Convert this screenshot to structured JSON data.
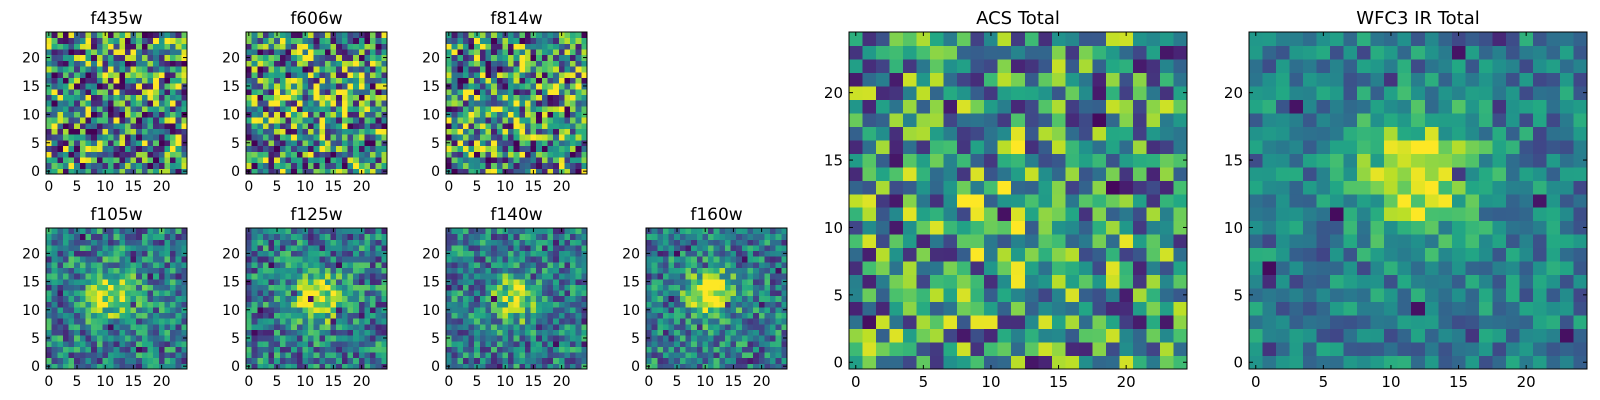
{
  "figure": {
    "colormap": "viridis",
    "colors": {
      "background": "#ffffff",
      "frame": "#000000"
    }
  },
  "chart_data": [
    {
      "type": "heatmap",
      "title": "f435w",
      "grid": [
        25,
        25
      ],
      "xlim": [
        -0.5,
        24.5
      ],
      "ylim": [
        -0.5,
        24.5
      ],
      "x_ticks": [
        0,
        5,
        10,
        15,
        20
      ],
      "y_ticks": [
        0,
        5,
        10,
        15,
        20
      ],
      "x_tick_labels": [
        "0",
        "5",
        "10",
        "15",
        "20"
      ],
      "y_tick_labels": [
        "0",
        "5",
        "10",
        "15",
        "20"
      ],
      "pattern": "noise",
      "signal": 0.0,
      "noise": 0.55,
      "seed": 11
    },
    {
      "type": "heatmap",
      "title": "f606w",
      "grid": [
        25,
        25
      ],
      "xlim": [
        -0.5,
        24.5
      ],
      "ylim": [
        -0.5,
        24.5
      ],
      "x_ticks": [
        0,
        5,
        10,
        15,
        20
      ],
      "y_ticks": [
        0,
        5,
        10,
        15,
        20
      ],
      "x_tick_labels": [
        "0",
        "5",
        "10",
        "15",
        "20"
      ],
      "y_tick_labels": [
        "0",
        "5",
        "10",
        "15",
        "20"
      ],
      "pattern": "noise",
      "signal": 0.15,
      "noise": 0.55,
      "seed": 23
    },
    {
      "type": "heatmap",
      "title": "f814w",
      "grid": [
        25,
        25
      ],
      "xlim": [
        -0.5,
        24.5
      ],
      "ylim": [
        -0.5,
        24.5
      ],
      "x_ticks": [
        0,
        5,
        10,
        15,
        20
      ],
      "y_ticks": [
        0,
        5,
        10,
        15,
        20
      ],
      "x_tick_labels": [
        "0",
        "5",
        "10",
        "15",
        "20"
      ],
      "y_tick_labels": [
        "0",
        "5",
        "10",
        "15",
        "20"
      ],
      "pattern": "noise",
      "signal": 0.1,
      "noise": 0.55,
      "seed": 37
    },
    {
      "type": "heatmap",
      "title": "f105w",
      "grid": [
        25,
        25
      ],
      "xlim": [
        -0.5,
        24.5
      ],
      "ylim": [
        -0.5,
        24.5
      ],
      "x_ticks": [
        0,
        5,
        10,
        15,
        20
      ],
      "y_ticks": [
        0,
        5,
        10,
        15,
        20
      ],
      "x_tick_labels": [
        "0",
        "5",
        "10",
        "15",
        "20"
      ],
      "y_tick_labels": [
        "0",
        "5",
        "10",
        "15",
        "20"
      ],
      "pattern": "centered-source",
      "center": [
        11,
        13
      ],
      "signal": 0.55,
      "noise": 0.32,
      "seed": 41
    },
    {
      "type": "heatmap",
      "title": "f125w",
      "grid": [
        25,
        25
      ],
      "xlim": [
        -0.5,
        24.5
      ],
      "ylim": [
        -0.5,
        24.5
      ],
      "x_ticks": [
        0,
        5,
        10,
        15,
        20
      ],
      "y_ticks": [
        0,
        5,
        10,
        15,
        20
      ],
      "x_tick_labels": [
        "0",
        "5",
        "10",
        "15",
        "20"
      ],
      "y_tick_labels": [
        "0",
        "5",
        "10",
        "15",
        "20"
      ],
      "pattern": "centered-source",
      "center": [
        12,
        12
      ],
      "signal": 0.6,
      "noise": 0.32,
      "seed": 53
    },
    {
      "type": "heatmap",
      "title": "f140w",
      "grid": [
        25,
        25
      ],
      "xlim": [
        -0.5,
        24.5
      ],
      "ylim": [
        -0.5,
        24.5
      ],
      "x_ticks": [
        0,
        5,
        10,
        15,
        20
      ],
      "y_ticks": [
        0,
        5,
        10,
        15,
        20
      ],
      "x_tick_labels": [
        "0",
        "5",
        "10",
        "15",
        "20"
      ],
      "y_tick_labels": [
        "0",
        "5",
        "10",
        "15",
        "20"
      ],
      "pattern": "centered-source",
      "center": [
        12,
        12
      ],
      "signal": 0.45,
      "noise": 0.3,
      "seed": 67
    },
    {
      "type": "heatmap",
      "title": "f160w",
      "grid": [
        25,
        25
      ],
      "xlim": [
        -0.5,
        24.5
      ],
      "ylim": [
        -0.5,
        24.5
      ],
      "x_ticks": [
        0,
        5,
        10,
        15,
        20
      ],
      "y_ticks": [
        0,
        5,
        10,
        15,
        20
      ],
      "x_tick_labels": [
        "0",
        "5",
        "10",
        "15",
        "20"
      ],
      "y_tick_labels": [
        "0",
        "5",
        "10",
        "15",
        "20"
      ],
      "pattern": "centered-source",
      "center": [
        11,
        13
      ],
      "signal": 0.6,
      "noise": 0.3,
      "seed": 79
    },
    {
      "type": "heatmap",
      "title": "ACS Total",
      "grid": [
        25,
        25
      ],
      "xlim": [
        -0.5,
        24.5
      ],
      "ylim": [
        -0.5,
        24.5
      ],
      "x_ticks": [
        0,
        5,
        10,
        15,
        20
      ],
      "y_ticks": [
        0,
        5,
        10,
        15,
        20
      ],
      "x_tick_labels": [
        "0",
        "5",
        "10",
        "15",
        "20"
      ],
      "y_tick_labels": [
        "0",
        "5",
        "10",
        "15",
        "20"
      ],
      "pattern": "noise",
      "center": [
        12,
        11
      ],
      "signal": 0.2,
      "noise": 0.45,
      "seed": 97
    },
    {
      "type": "heatmap",
      "title": "WFC3 IR Total",
      "grid": [
        25,
        25
      ],
      "xlim": [
        -0.5,
        24.5
      ],
      "ylim": [
        -0.5,
        24.5
      ],
      "x_ticks": [
        0,
        5,
        10,
        15,
        20
      ],
      "y_ticks": [
        0,
        5,
        10,
        15,
        20
      ],
      "x_tick_labels": [
        "0",
        "5",
        "10",
        "15",
        "20"
      ],
      "y_tick_labels": [
        "0",
        "5",
        "10",
        "15",
        "20"
      ],
      "pattern": "centered-source",
      "center": [
        12,
        14
      ],
      "signal": 0.6,
      "noise": 0.22,
      "seed": 113
    }
  ]
}
